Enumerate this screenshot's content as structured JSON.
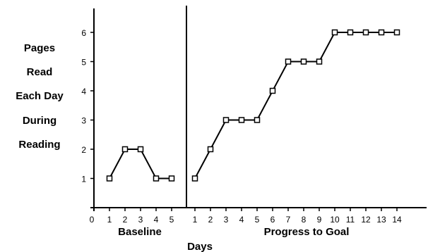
{
  "chart_data": {
    "type": "line",
    "ylabel_lines": [
      "Pages",
      "Read",
      "Each Day",
      "During",
      "Reading"
    ],
    "xlabel": "Days",
    "ylim": [
      0,
      6
    ],
    "yticks": [
      "0",
      "1",
      "2",
      "3",
      "4",
      "5",
      "6"
    ],
    "phases": [
      {
        "label": "Baseline",
        "x_tick_labels": [
          "1",
          "2",
          "3",
          "4",
          "5"
        ],
        "x": [
          1,
          2,
          3,
          4,
          5
        ],
        "y": [
          1,
          2,
          2,
          1,
          1
        ]
      },
      {
        "label": "Progress to Goal",
        "x_tick_labels": [
          "1",
          "2",
          "3",
          "4",
          "5",
          "6",
          "7",
          "8",
          "9",
          "10",
          "11",
          "12",
          "13",
          "14"
        ],
        "x": [
          1,
          2,
          3,
          4,
          5,
          6,
          7,
          8,
          9,
          10,
          11,
          12,
          13,
          14
        ],
        "y": [
          1,
          2,
          3,
          3,
          3,
          4,
          5,
          5,
          5,
          6,
          6,
          6,
          6,
          6
        ]
      }
    ],
    "x_origin_label": "0",
    "grid": false,
    "marker": "square"
  }
}
